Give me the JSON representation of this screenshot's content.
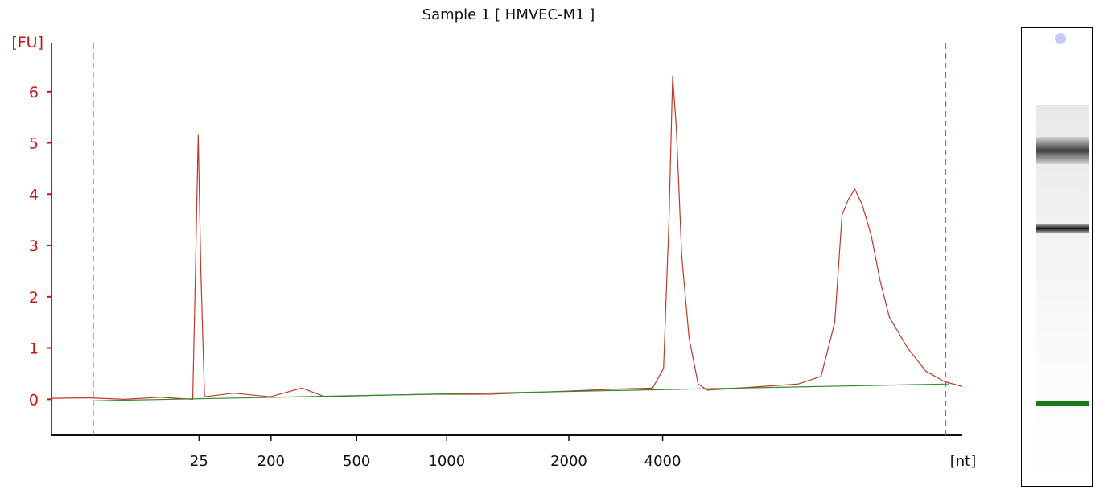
{
  "chart_data": {
    "type": "line",
    "title": "Sample 1  [ HMVEC-M1 ]",
    "ylabel": "[FU]",
    "xlabel": "[nt]",
    "ylim": [
      -0.7,
      7.0
    ],
    "yticks": [
      0,
      1,
      2,
      3,
      4,
      5,
      6
    ],
    "xticks": [
      "25",
      "200",
      "500",
      "1000",
      "2000",
      "4000"
    ],
    "xscale": "nonlinear size ladder (migration time)",
    "grid": false,
    "marker_lines": [
      "lower marker",
      "upper marker"
    ],
    "series": [
      {
        "color": "#c0392b",
        "description_points": [
          {
            "x": 0.0,
            "y": 0.02
          },
          {
            "x": 0.04,
            "y": 0.03
          },
          {
            "x": 0.08,
            "y": 0.0
          },
          {
            "x": 0.12,
            "y": 0.04
          },
          {
            "x": 0.155,
            "y": 0.0
          },
          {
            "x": 0.158,
            "y": 2.5
          },
          {
            "x": 0.161,
            "y": 5.15
          },
          {
            "x": 0.164,
            "y": 2.5
          },
          {
            "x": 0.168,
            "y": 0.05
          },
          {
            "x": 0.2,
            "y": 0.12
          },
          {
            "x": 0.24,
            "y": 0.05
          },
          {
            "x": 0.275,
            "y": 0.22
          },
          {
            "x": 0.3,
            "y": 0.05
          },
          {
            "x": 0.36,
            "y": 0.08
          },
          {
            "x": 0.42,
            "y": 0.1
          },
          {
            "x": 0.48,
            "y": 0.1
          },
          {
            "x": 0.55,
            "y": 0.15
          },
          {
            "x": 0.62,
            "y": 0.2
          },
          {
            "x": 0.66,
            "y": 0.22
          },
          {
            "x": 0.672,
            "y": 0.6
          },
          {
            "x": 0.678,
            "y": 3.5
          },
          {
            "x": 0.682,
            "y": 6.3
          },
          {
            "x": 0.686,
            "y": 5.3
          },
          {
            "x": 0.692,
            "y": 2.8
          },
          {
            "x": 0.7,
            "y": 1.2
          },
          {
            "x": 0.71,
            "y": 0.3
          },
          {
            "x": 0.72,
            "y": 0.18
          },
          {
            "x": 0.78,
            "y": 0.25
          },
          {
            "x": 0.82,
            "y": 0.3
          },
          {
            "x": 0.845,
            "y": 0.45
          },
          {
            "x": 0.86,
            "y": 1.5
          },
          {
            "x": 0.868,
            "y": 3.6
          },
          {
            "x": 0.875,
            "y": 3.9
          },
          {
            "x": 0.882,
            "y": 4.1
          },
          {
            "x": 0.89,
            "y": 3.8
          },
          {
            "x": 0.9,
            "y": 3.2
          },
          {
            "x": 0.91,
            "y": 2.3
          },
          {
            "x": 0.92,
            "y": 1.6
          },
          {
            "x": 0.94,
            "y": 1.0
          },
          {
            "x": 0.96,
            "y": 0.55
          },
          {
            "x": 0.98,
            "y": 0.35
          },
          {
            "x": 1.0,
            "y": 0.25
          }
        ]
      },
      {
        "color": "#2e8b2e",
        "description_points": [
          {
            "x": 0.045,
            "y": -0.03
          },
          {
            "x": 0.985,
            "y": 0.3
          }
        ]
      }
    ]
  },
  "gel": {
    "marker_color": "#1a7a1a"
  }
}
